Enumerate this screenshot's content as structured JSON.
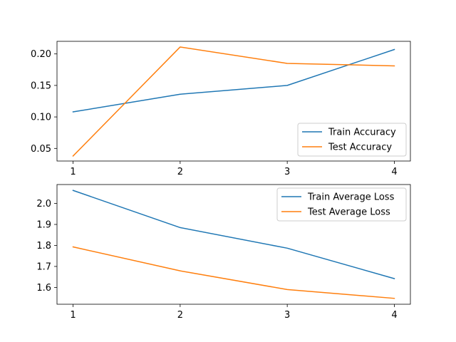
{
  "chart_data": [
    {
      "type": "line",
      "x": [
        1,
        2,
        3,
        4
      ],
      "xticks": [
        "1",
        "2",
        "3",
        "4"
      ],
      "xlim": [
        0.85,
        4.15
      ],
      "ylim": [
        0.03,
        0.22
      ],
      "yticks": [
        "0.05",
        "0.10",
        "0.15",
        "0.20"
      ],
      "legend_position": "lower-right",
      "series": [
        {
          "name": "Train Accuracy",
          "color": "#1f77b4",
          "values": [
            0.108,
            0.136,
            0.15,
            0.207
          ]
        },
        {
          "name": "Test Accuracy",
          "color": "#ff7f0e",
          "values": [
            0.038,
            0.211,
            0.185,
            0.181
          ]
        }
      ]
    },
    {
      "type": "line",
      "x": [
        1,
        2,
        3,
        4
      ],
      "xticks": [
        "1",
        "2",
        "3",
        "4"
      ],
      "xlim": [
        0.85,
        4.15
      ],
      "ylim": [
        1.52,
        2.09
      ],
      "yticks": [
        "1.6",
        "1.7",
        "1.8",
        "1.9",
        "2.0"
      ],
      "legend_position": "upper-right",
      "series": [
        {
          "name": "Train Average Loss",
          "color": "#1f77b4",
          "values": [
            2.062,
            1.885,
            1.787,
            1.642
          ]
        },
        {
          "name": "Test Average Loss",
          "color": "#ff7f0e",
          "values": [
            1.793,
            1.679,
            1.59,
            1.548
          ]
        }
      ]
    }
  ]
}
